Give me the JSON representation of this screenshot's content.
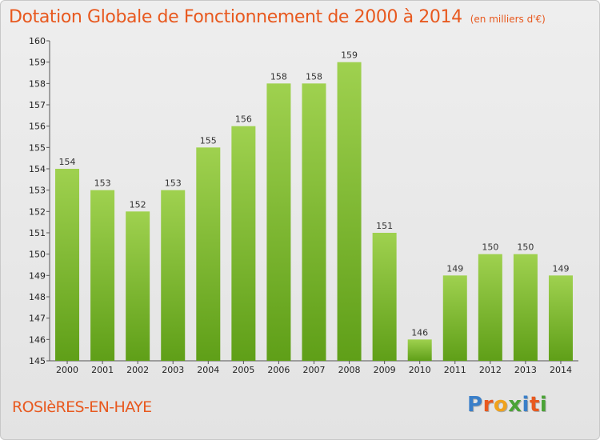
{
  "header": {
    "title": "Dotation Globale de Fonctionnement de 2000 à 2014",
    "subtitle": "(en milliers d'€)"
  },
  "footer": {
    "commune": "ROSIèRES-EN-HAYE",
    "logo_text": "Proxiti",
    "logo_colors": [
      "#3a7fc9",
      "#e8591f",
      "#f0a21c",
      "#4aa336",
      "#3a7fc9",
      "#e8591f",
      "#4aa336"
    ]
  },
  "colors": {
    "accent": "#e8591f",
    "bar_light": "#9fd14f",
    "bar_dark": "#5f9f18"
  },
  "chart_data": {
    "type": "bar",
    "categories": [
      "2000",
      "2001",
      "2002",
      "2003",
      "2004",
      "2005",
      "2006",
      "2007",
      "2008",
      "2009",
      "2010",
      "2011",
      "2012",
      "2013",
      "2014"
    ],
    "values": [
      154,
      153,
      152,
      153,
      155,
      156,
      158,
      158,
      159,
      151,
      146,
      149,
      150,
      150,
      149
    ],
    "title": "Dotation Globale de Fonctionnement de 2000 à 2014",
    "subtitle": "(en milliers d'€)",
    "xlabel": "",
    "ylabel": "",
    "ylim": [
      145,
      160
    ],
    "yticks": [
      145,
      146,
      147,
      148,
      149,
      150,
      151,
      152,
      153,
      154,
      155,
      156,
      157,
      158,
      159,
      160
    ],
    "grid": false,
    "legend": "none"
  }
}
